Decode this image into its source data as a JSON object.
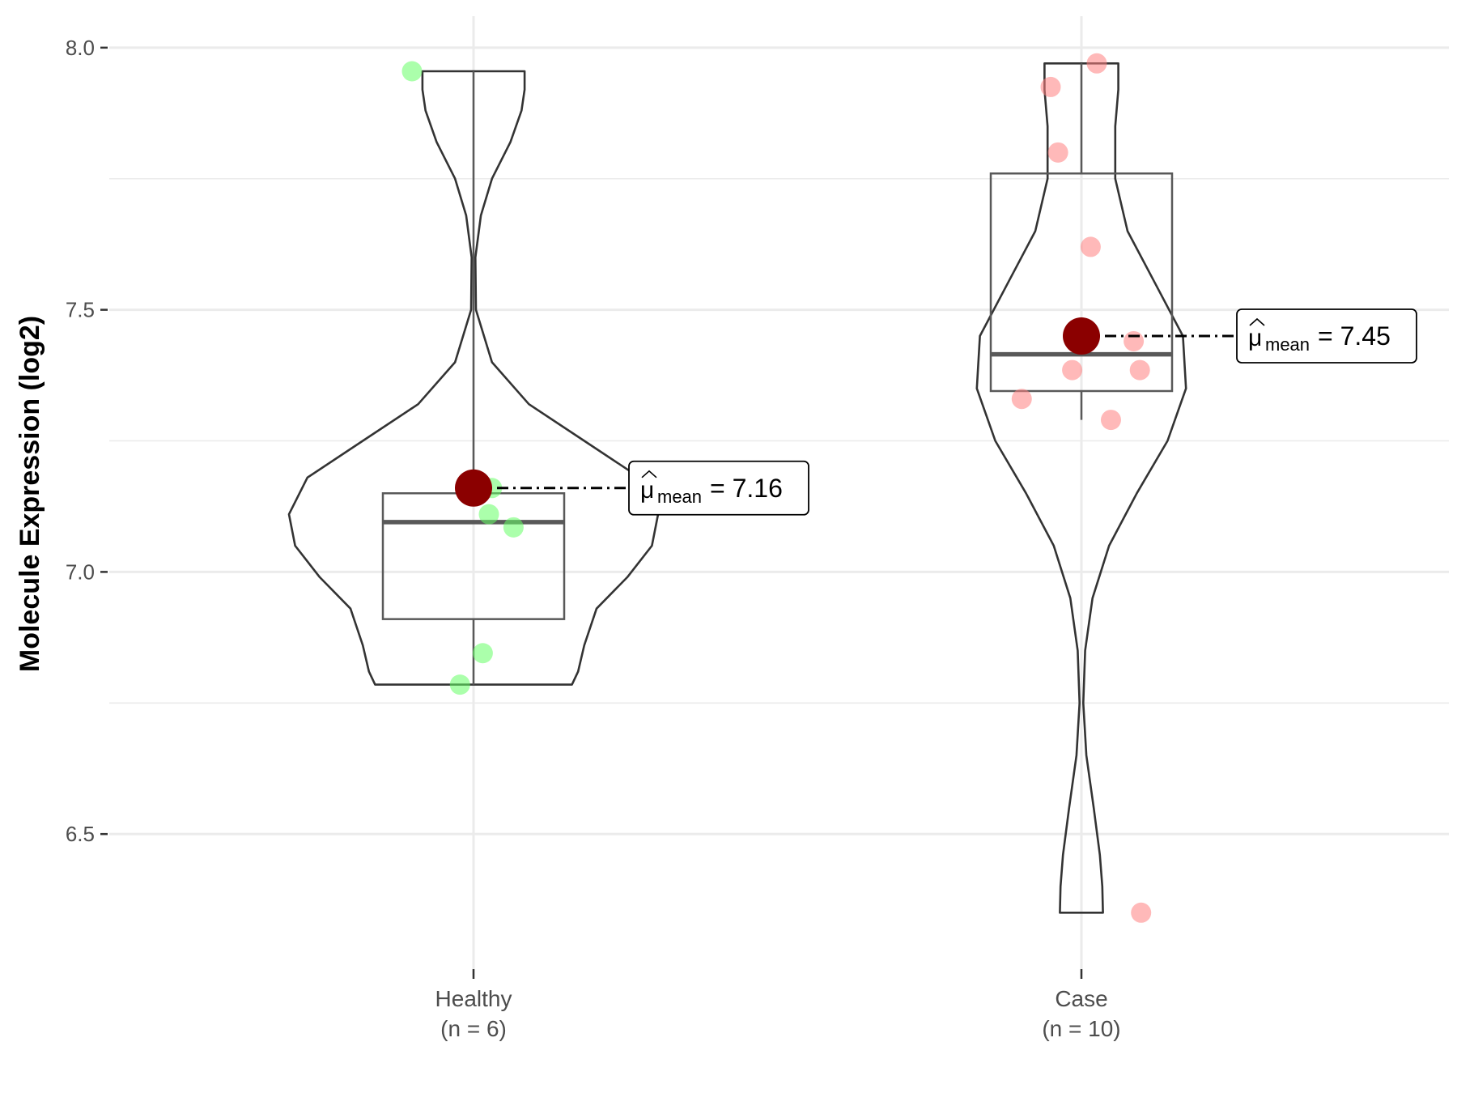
{
  "chart_data": {
    "type": "violin",
    "title": "",
    "xlabel": "",
    "ylabel": "Molecule Expression (log2)",
    "ylim": [
      6.23,
      8.06
    ],
    "yticks": [
      6.5,
      7.0,
      7.5,
      8.0
    ],
    "ytick_labels": [
      "6.5",
      "7.0",
      "7.5",
      "8.0"
    ],
    "grid": true,
    "legend": "none",
    "groups": [
      {
        "label": "Healthy",
        "n_label": "(n = 6)",
        "point_color": "#66ff66",
        "points": [
          {
            "offset": -0.1,
            "y": 7.955
          },
          {
            "offset": 0.03,
            "y": 7.16
          },
          {
            "offset": 0.025,
            "y": 7.11
          },
          {
            "offset": 0.065,
            "y": 7.085
          },
          {
            "offset": 0.015,
            "y": 6.845
          },
          {
            "offset": -0.022,
            "y": 6.785
          }
        ],
        "box": {
          "q1": 6.91,
          "median": 7.095,
          "q3": 7.15,
          "whisker_low": 6.785,
          "whisker_high": 7.955
        },
        "violin": {
          "y_min": 6.785,
          "y_max": 7.955,
          "profile": [
            [
              6.785,
              0.16
            ],
            [
              6.81,
              0.17
            ],
            [
              6.86,
              0.18
            ],
            [
              6.93,
              0.2
            ],
            [
              6.99,
              0.25
            ],
            [
              7.05,
              0.29
            ],
            [
              7.11,
              0.3
            ],
            [
              7.18,
              0.27
            ],
            [
              7.25,
              0.18
            ],
            [
              7.32,
              0.09
            ],
            [
              7.4,
              0.03
            ],
            [
              7.5,
              0.004
            ],
            [
              7.6,
              0.003
            ],
            [
              7.68,
              0.012
            ],
            [
              7.75,
              0.03
            ],
            [
              7.82,
              0.06
            ],
            [
              7.88,
              0.078
            ],
            [
              7.92,
              0.083
            ],
            [
              7.955,
              0.083
            ]
          ]
        },
        "mean": 7.16,
        "mean_label_prefix": "μ",
        "mean_label_sub": "mean",
        "mean_label_value": "= 7.16"
      },
      {
        "label": "Case",
        "n_label": "(n = 10)",
        "point_color": "#ff8080",
        "points": [
          {
            "offset": 0.025,
            "y": 7.97
          },
          {
            "offset": -0.05,
            "y": 7.925
          },
          {
            "offset": -0.038,
            "y": 7.8
          },
          {
            "offset": 0.015,
            "y": 7.62
          },
          {
            "offset": 0.085,
            "y": 7.44
          },
          {
            "offset": -0.015,
            "y": 7.385
          },
          {
            "offset": 0.095,
            "y": 7.385
          },
          {
            "offset": -0.097,
            "y": 7.33
          },
          {
            "offset": 0.048,
            "y": 7.29
          },
          {
            "offset": 0.097,
            "y": 6.35
          }
        ],
        "box": {
          "q1": 7.345,
          "median": 7.415,
          "q3": 7.76,
          "whisker_low": 7.29,
          "whisker_high": 7.97
        },
        "violin": {
          "y_min": 6.35,
          "y_max": 7.97,
          "profile": [
            [
              6.35,
              0.035
            ],
            [
              6.4,
              0.034
            ],
            [
              6.46,
              0.03
            ],
            [
              6.55,
              0.02
            ],
            [
              6.65,
              0.008
            ],
            [
              6.75,
              0.003
            ],
            [
              6.85,
              0.006
            ],
            [
              6.95,
              0.018
            ],
            [
              7.05,
              0.045
            ],
            [
              7.15,
              0.09
            ],
            [
              7.25,
              0.14
            ],
            [
              7.35,
              0.17
            ],
            [
              7.45,
              0.165
            ],
            [
              7.55,
              0.12
            ],
            [
              7.65,
              0.075
            ],
            [
              7.75,
              0.055
            ],
            [
              7.85,
              0.055
            ],
            [
              7.92,
              0.06
            ],
            [
              7.97,
              0.06
            ]
          ]
        },
        "mean": 7.45,
        "mean_label_prefix": "μ",
        "mean_label_sub": "mean",
        "mean_label_value": "= 7.45"
      }
    ],
    "colors": {
      "mean_point": "#8b0000",
      "box_stroke": "#595959",
      "violin_stroke": "#333333",
      "grid": "#ebebeb",
      "axis_text": "#4d4d4d"
    }
  }
}
